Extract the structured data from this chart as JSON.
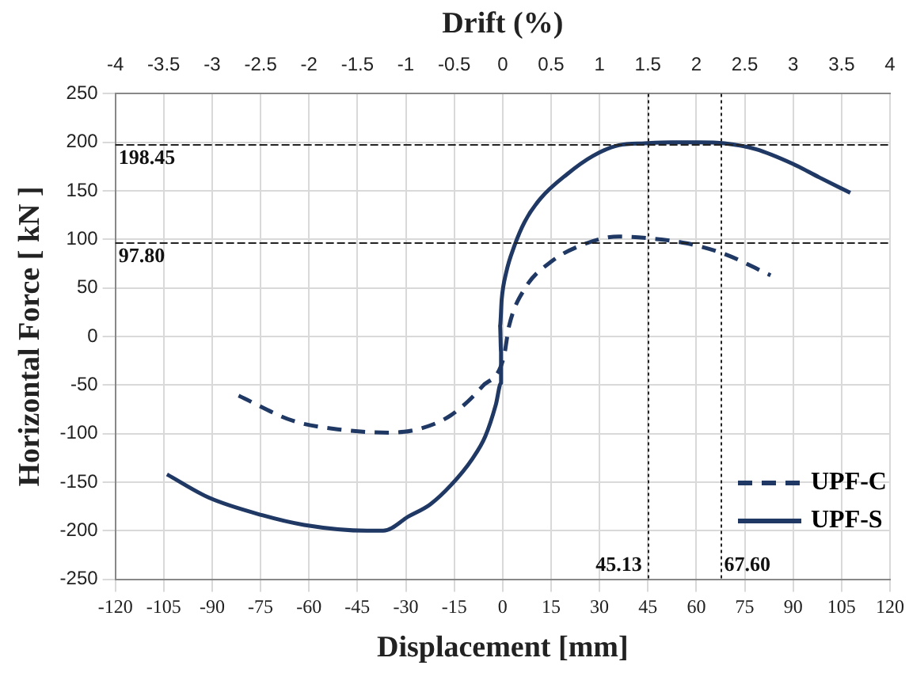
{
  "chart_data": {
    "type": "line",
    "xlabel": "Displacement [mm]",
    "x2label": "Drift (%)",
    "ylabel": "Horizontal Force [ kN ]",
    "xlim": [
      -120,
      120
    ],
    "xticks": [
      -120,
      -105,
      -90,
      -75,
      -60,
      -45,
      -30,
      -15,
      0,
      15,
      30,
      45,
      60,
      75,
      90,
      105,
      120
    ],
    "x2lim": [
      -4,
      4
    ],
    "x2ticks": [
      -4,
      -3.5,
      -3,
      -2.5,
      -2,
      -1.5,
      -1,
      -0.5,
      0,
      0.5,
      1,
      1.5,
      2,
      2.5,
      3,
      3.5,
      4
    ],
    "ylim": [
      -250,
      250
    ],
    "yticks": [
      -250,
      -200,
      -150,
      -100,
      -50,
      0,
      50,
      100,
      150,
      200,
      250
    ],
    "grid": true,
    "legend": "bottom right",
    "marker": "none",
    "series": [
      {
        "name": "UPF-C",
        "color": "#1f3864",
        "line_style": "dashed",
        "x": [
          -81.8,
          -64.8,
          -50,
          -35.5,
          -25.7,
          -16,
          -6.2,
          0.3,
          2,
          6.8,
          15,
          26,
          36,
          45.9,
          57,
          68.7,
          83
        ],
        "values": [
          -61,
          -87,
          -96,
          -99,
          -95,
          -81,
          -51,
          -22,
          11,
          49,
          77,
          96,
          103,
          101,
          96,
          85,
          63
        ]
      },
      {
        "name": "UPF-S",
        "color": "#1f3864",
        "line_style": "solid",
        "x": [
          -104,
          -91,
          -74.5,
          -61.5,
          -42,
          -37,
          -29,
          -22.5,
          -16,
          -9.4,
          -5.4,
          -2.1,
          -0.5,
          -0.5,
          -0.8,
          -0.3,
          1.1,
          3.6,
          6.8,
          11.7,
          19.9,
          28,
          36,
          44,
          52.4,
          60.5,
          68.7,
          78.4,
          89.8,
          98,
          107.7
        ],
        "values": [
          -142,
          -166,
          -184,
          -194,
          -200,
          -200,
          -185,
          -173,
          -153,
          -126,
          -103,
          -70,
          -48,
          -16,
          11,
          38,
          66,
          93,
          118,
          142,
          167,
          186,
          197,
          199,
          200,
          200,
          199,
          193,
          178,
          164,
          148
        ]
      }
    ],
    "ref_lines": [
      {
        "axis": "y",
        "value": 198.45,
        "label": "198.45",
        "line_style": "dashed"
      },
      {
        "axis": "y",
        "value": 97.8,
        "label": "97.80",
        "line_style": "dashed"
      },
      {
        "axis": "x",
        "value": 45.13,
        "label": "45.13",
        "line_style": "dotted"
      },
      {
        "axis": "x",
        "value": 67.6,
        "label": "67.60",
        "line_style": "dotted"
      }
    ]
  }
}
